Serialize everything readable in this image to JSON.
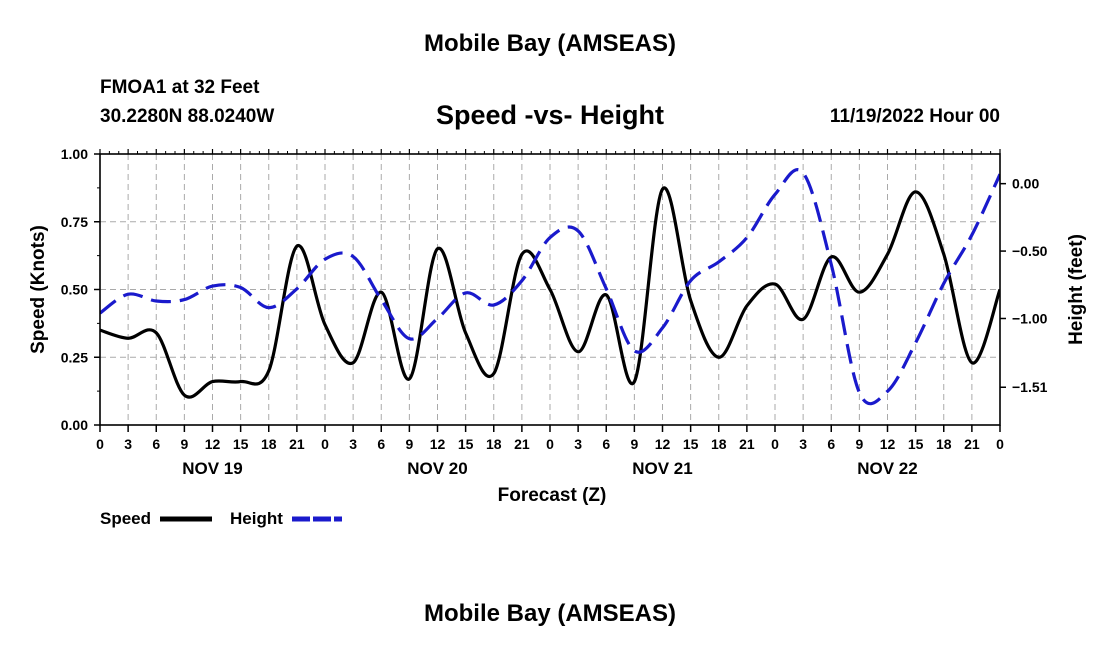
{
  "header": {
    "main_title": "Mobile Bay (AMSEAS)",
    "station": "FMOA1 at 32 Feet",
    "coords": "30.2280N  88.0240W",
    "datetime": "11/19/2022 Hour 00",
    "bottom_title": "Mobile Bay (AMSEAS)"
  },
  "chart_data": {
    "type": "line",
    "title": "Speed -vs- Height",
    "xlabel": "Forecast (Z)",
    "ylabel": "Speed (Knots)",
    "ylabel_right": "Height (feet)",
    "x_range_hours": [
      0,
      96
    ],
    "x_tick_step_hours": 3,
    "x_tick_labels": [
      "0",
      "3",
      "6",
      "9",
      "12",
      "15",
      "18",
      "21",
      "0",
      "3",
      "6",
      "9",
      "12",
      "15",
      "18",
      "21",
      "0",
      "3",
      "6",
      "9",
      "12",
      "15",
      "18",
      "21",
      "0",
      "3",
      "6",
      "9",
      "12",
      "15",
      "18",
      "21",
      "0"
    ],
    "day_labels": [
      {
        "label": "NOV 19",
        "hour": 12
      },
      {
        "label": "NOV 20",
        "hour": 36
      },
      {
        "label": "NOV 21",
        "hour": 60
      },
      {
        "label": "NOV 22",
        "hour": 84
      }
    ],
    "ylim": [
      0,
      1.0
    ],
    "y_ticks": [
      0.0,
      0.25,
      0.5,
      0.75,
      1.0
    ],
    "y_tick_labels": [
      "0.00",
      "0.25",
      "0.50",
      "0.75",
      "1.00"
    ],
    "ylim_right": [
      -1.79,
      0.22
    ],
    "y_ticks_right": [
      0.0,
      -0.5,
      -1.0,
      -1.51
    ],
    "y_tick_labels_right": [
      "0.00",
      "−0.50",
      "−1.00",
      "−1.51"
    ],
    "grid": true,
    "legend_position": "bottom-left",
    "series": [
      {
        "name": "Speed",
        "axis": "left",
        "color": "#000000",
        "dash": "solid",
        "x": [
          0,
          3,
          6,
          9,
          12,
          15,
          18,
          21,
          24,
          27,
          30,
          33,
          36,
          39,
          42,
          45,
          48,
          51,
          54,
          57,
          60,
          63,
          66,
          69,
          72,
          75,
          78,
          81,
          84,
          87,
          90,
          93,
          96
        ],
        "values": [
          0.35,
          0.32,
          0.34,
          0.11,
          0.16,
          0.16,
          0.2,
          0.66,
          0.37,
          0.23,
          0.49,
          0.17,
          0.65,
          0.34,
          0.19,
          0.63,
          0.5,
          0.27,
          0.48,
          0.16,
          0.87,
          0.46,
          0.25,
          0.44,
          0.52,
          0.39,
          0.62,
          0.49,
          0.63,
          0.86,
          0.63,
          0.23,
          0.5
        ]
      },
      {
        "name": "Height",
        "axis": "right",
        "color": "#1a1acc",
        "dash": "dashed",
        "x": [
          0,
          3,
          6,
          9,
          12,
          15,
          18,
          21,
          24,
          27,
          30,
          33,
          36,
          39,
          42,
          45,
          48,
          51,
          54,
          57,
          60,
          63,
          66,
          69,
          72,
          75,
          78,
          81,
          84,
          87,
          90,
          93,
          96
        ],
        "values": [
          -0.96,
          -0.82,
          -0.87,
          -0.86,
          -0.76,
          -0.77,
          -0.92,
          -0.78,
          -0.56,
          -0.54,
          -0.86,
          -1.15,
          -1.0,
          -0.81,
          -0.9,
          -0.72,
          -0.4,
          -0.35,
          -0.78,
          -1.24,
          -1.07,
          -0.72,
          -0.58,
          -0.4,
          -0.08,
          0.08,
          -0.6,
          -1.55,
          -1.54,
          -1.18,
          -0.74,
          -0.38,
          0.07
        ]
      }
    ]
  }
}
